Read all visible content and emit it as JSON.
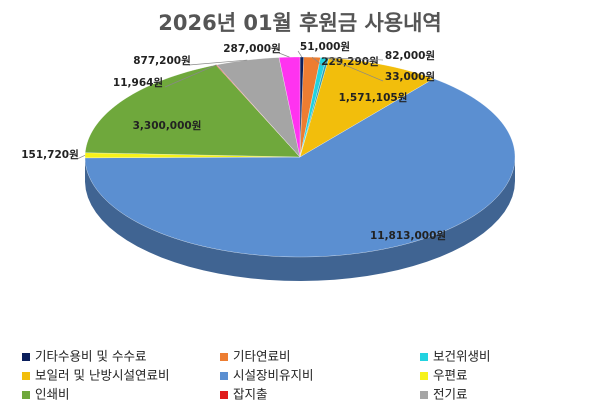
{
  "chart_data": {
    "type": "pie",
    "title": "2026년 01월 후원금 사용내역",
    "categories": [
      "기타수용비 및 수수료",
      "기타연료비",
      "보건위생비",
      null,
      "보일러 및 난방시설연료비",
      "시설장비유지비",
      "우편료",
      "인쇄비",
      "잡지출",
      "전기료",
      null
    ],
    "values": [
      51000,
      229290,
      82000,
      33000,
      1571105,
      11813000,
      151720,
      3300000,
      11964,
      877200,
      287000
    ],
    "value_labels": [
      "51,000원",
      "229,290원",
      "82,000원",
      "33,000원",
      "1,571,105원",
      "11,813,000원",
      "151,720원",
      "3,300,000원",
      "11,964원",
      "877,200원",
      "287,000원"
    ],
    "colors": [
      "#0b1f5c",
      "#ed7d31",
      "#22d3e0",
      "#2e9fb5",
      "#f2be0c",
      "#5b8fd1",
      "#f6f21a",
      "#6fa83c",
      "#e01b1b",
      "#a5a5a5",
      "#ff33f0"
    ],
    "legend": "bottom"
  }
}
